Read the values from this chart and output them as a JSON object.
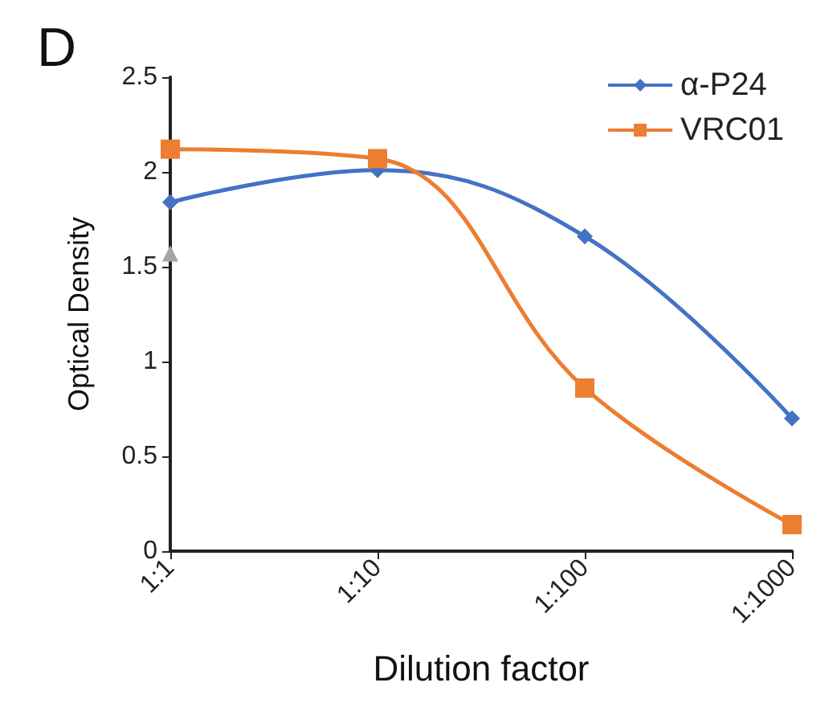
{
  "chart_data": {
    "type": "line",
    "title": "D",
    "xlabel": "Dilution factor",
    "ylabel": "Optical Density",
    "categories": [
      "1:1",
      "1:10",
      "1:100",
      "1:1000"
    ],
    "series": [
      {
        "name": "α-P24",
        "color": "#4472c4",
        "marker": "diamond",
        "values": [
          1.84,
          2.01,
          1.66,
          0.7
        ]
      },
      {
        "name": "VRC01",
        "color": "#ed7d31",
        "marker": "square",
        "values": [
          2.12,
          2.07,
          0.86,
          0.14
        ]
      },
      {
        "color": "#a5a5a5",
        "marker": "triangle",
        "values": [
          1.57,
          null,
          null,
          null
        ]
      }
    ],
    "ylim": [
      0,
      2.5
    ],
    "yticks": [
      0,
      0.5,
      1,
      1.5,
      2,
      2.5
    ],
    "grid": false,
    "legend": "top right"
  }
}
